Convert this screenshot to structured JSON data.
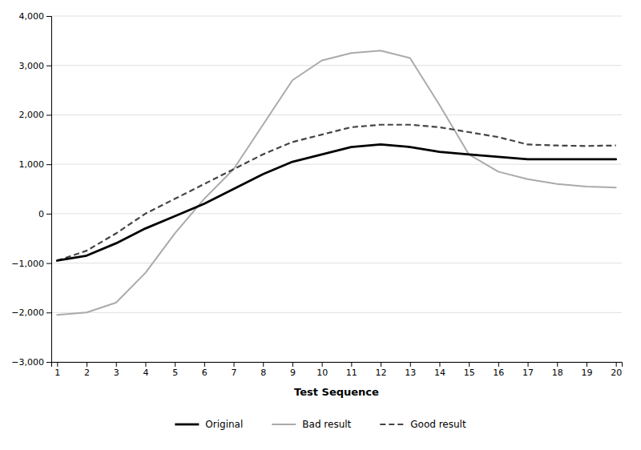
{
  "chart_data": {
    "type": "line",
    "x": [
      1,
      2,
      3,
      4,
      5,
      6,
      7,
      8,
      9,
      10,
      11,
      12,
      13,
      14,
      15,
      16,
      17,
      18,
      19,
      20
    ],
    "series": [
      {
        "name": "Original",
        "color": "#000000",
        "line_style": "solid",
        "values": [
          -950,
          -850,
          -600,
          -300,
          -50,
          200,
          500,
          800,
          1050,
          1200,
          1350,
          1400,
          1350,
          1250,
          1200,
          1150,
          1100,
          1100,
          1100,
          1100
        ]
      },
      {
        "name": "Bad result",
        "color": "#aaaaaa",
        "line_style": "solid",
        "values": [
          -2050,
          -2000,
          -1800,
          -1200,
          -400,
          300,
          900,
          1800,
          2700,
          3100,
          3250,
          3300,
          3150,
          2200,
          1200,
          850,
          700,
          600,
          550,
          530
        ]
      },
      {
        "name": "Good result",
        "color": "#444444",
        "line_style": "dashed",
        "values": [
          -950,
          -750,
          -400,
          0,
          300,
          600,
          900,
          1200,
          1450,
          1600,
          1750,
          1800,
          1800,
          1750,
          1650,
          1550,
          1400,
          1380,
          1370,
          1380
        ]
      }
    ],
    "x_label": "Test Sequence",
    "xlim": [
      0.8,
      20.2
    ],
    "xticks": [
      1,
      2,
      3,
      4,
      5,
      6,
      7,
      8,
      9,
      10,
      11,
      12,
      13,
      14,
      15,
      16,
      17,
      18,
      19,
      20
    ],
    "ylim": [
      -3000,
      4000
    ],
    "yticks": [
      {
        "value": -3000,
        "label": "−3,000"
      },
      {
        "value": -2000,
        "label": "−2,000"
      },
      {
        "value": -1000,
        "label": "−1,000"
      },
      0,
      {
        "value": 1000,
        "label": "1,000"
      },
      {
        "value": 2000,
        "label": "2,000"
      },
      {
        "value": 3000,
        "label": "3,000"
      },
      {
        "value": 4000,
        "label": "4,000"
      }
    ],
    "grid": true,
    "legend": "bottom"
  }
}
